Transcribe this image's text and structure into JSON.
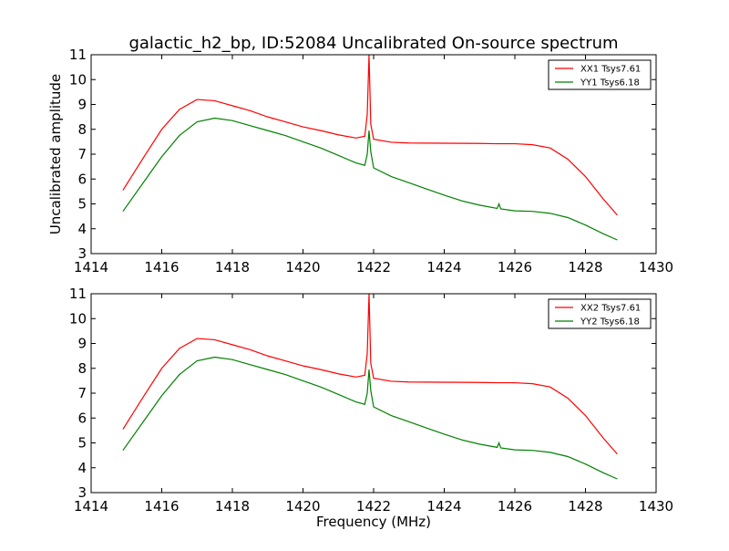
{
  "title": "galactic_h2_bp, ID:52084 Uncalibrated On-source spectrum",
  "ylabel": "Uncalibrated amplitude",
  "xlabel": "Frequency (MHz)",
  "chart_data": [
    {
      "type": "line",
      "xlim": [
        1414,
        1430
      ],
      "ylim": [
        3,
        11
      ],
      "xticks": [
        "1414",
        "1416",
        "1418",
        "1420",
        "1422",
        "1424",
        "1426",
        "1428",
        "1430"
      ],
      "yticks": [
        "3",
        "4",
        "5",
        "6",
        "7",
        "8",
        "9",
        "10",
        "11"
      ],
      "legend_position": "top-right",
      "series": [
        {
          "name": "XX1 Tsys7.61",
          "color": "#ff0000",
          "points": [
            [
              1414.9,
              5.55
            ],
            [
              1415.5,
              6.9
            ],
            [
              1416.0,
              8.0
            ],
            [
              1416.5,
              8.8
            ],
            [
              1417.0,
              9.2
            ],
            [
              1417.5,
              9.15
            ],
            [
              1418.0,
              8.95
            ],
            [
              1418.5,
              8.75
            ],
            [
              1419.0,
              8.5
            ],
            [
              1419.5,
              8.3
            ],
            [
              1420.0,
              8.1
            ],
            [
              1420.5,
              7.95
            ],
            [
              1421.0,
              7.78
            ],
            [
              1421.5,
              7.65
            ],
            [
              1421.75,
              7.72
            ],
            [
              1421.82,
              8.6
            ],
            [
              1421.87,
              11.0
            ],
            [
              1421.92,
              8.2
            ],
            [
              1422.0,
              7.6
            ],
            [
              1422.5,
              7.48
            ],
            [
              1423.0,
              7.45
            ],
            [
              1424.0,
              7.44
            ],
            [
              1425.0,
              7.43
            ],
            [
              1425.5,
              7.42
            ],
            [
              1426.0,
              7.42
            ],
            [
              1426.5,
              7.38
            ],
            [
              1427.0,
              7.25
            ],
            [
              1427.5,
              6.8
            ],
            [
              1428.0,
              6.1
            ],
            [
              1428.5,
              5.2
            ],
            [
              1428.9,
              4.55
            ]
          ]
        },
        {
          "name": "YY1 Tsys6.18",
          "color": "#008000",
          "points": [
            [
              1414.9,
              4.7
            ],
            [
              1415.5,
              5.9
            ],
            [
              1416.0,
              6.9
            ],
            [
              1416.5,
              7.75
            ],
            [
              1417.0,
              8.3
            ],
            [
              1417.5,
              8.45
            ],
            [
              1418.0,
              8.35
            ],
            [
              1418.5,
              8.15
            ],
            [
              1419.0,
              7.95
            ],
            [
              1419.5,
              7.75
            ],
            [
              1420.0,
              7.5
            ],
            [
              1420.5,
              7.25
            ],
            [
              1421.0,
              6.95
            ],
            [
              1421.5,
              6.65
            ],
            [
              1421.75,
              6.55
            ],
            [
              1421.82,
              7.0
            ],
            [
              1421.87,
              7.95
            ],
            [
              1421.92,
              7.1
            ],
            [
              1422.0,
              6.45
            ],
            [
              1422.5,
              6.1
            ],
            [
              1423.0,
              5.85
            ],
            [
              1423.5,
              5.6
            ],
            [
              1424.0,
              5.35
            ],
            [
              1424.5,
              5.12
            ],
            [
              1425.0,
              4.95
            ],
            [
              1425.5,
              4.82
            ],
            [
              1425.55,
              5.0
            ],
            [
              1425.6,
              4.8
            ],
            [
              1426.0,
              4.72
            ],
            [
              1426.5,
              4.7
            ],
            [
              1427.0,
              4.62
            ],
            [
              1427.5,
              4.45
            ],
            [
              1428.0,
              4.15
            ],
            [
              1428.5,
              3.8
            ],
            [
              1428.9,
              3.55
            ]
          ]
        }
      ]
    },
    {
      "type": "line",
      "xlim": [
        1414,
        1430
      ],
      "ylim": [
        3,
        11
      ],
      "xticks": [
        "1414",
        "1416",
        "1418",
        "1420",
        "1422",
        "1424",
        "1426",
        "1428",
        "1430"
      ],
      "yticks": [
        "3",
        "4",
        "5",
        "6",
        "7",
        "8",
        "9",
        "10",
        "11"
      ],
      "legend_position": "top-right",
      "series": [
        {
          "name": "XX2 Tsys7.61",
          "color": "#ff0000",
          "points": [
            [
              1414.9,
              5.55
            ],
            [
              1415.5,
              6.9
            ],
            [
              1416.0,
              8.0
            ],
            [
              1416.5,
              8.8
            ],
            [
              1417.0,
              9.2
            ],
            [
              1417.5,
              9.15
            ],
            [
              1418.0,
              8.95
            ],
            [
              1418.5,
              8.75
            ],
            [
              1419.0,
              8.5
            ],
            [
              1419.5,
              8.3
            ],
            [
              1420.0,
              8.1
            ],
            [
              1420.5,
              7.95
            ],
            [
              1421.0,
              7.78
            ],
            [
              1421.5,
              7.65
            ],
            [
              1421.75,
              7.72
            ],
            [
              1421.82,
              8.6
            ],
            [
              1421.87,
              11.0
            ],
            [
              1421.92,
              8.2
            ],
            [
              1422.0,
              7.6
            ],
            [
              1422.5,
              7.48
            ],
            [
              1423.0,
              7.45
            ],
            [
              1424.0,
              7.44
            ],
            [
              1425.0,
              7.43
            ],
            [
              1425.5,
              7.42
            ],
            [
              1426.0,
              7.42
            ],
            [
              1426.5,
              7.38
            ],
            [
              1427.0,
              7.25
            ],
            [
              1427.5,
              6.8
            ],
            [
              1428.0,
              6.1
            ],
            [
              1428.5,
              5.2
            ],
            [
              1428.9,
              4.55
            ]
          ]
        },
        {
          "name": "YY2 Tsys6.18",
          "color": "#008000",
          "points": [
            [
              1414.9,
              4.7
            ],
            [
              1415.5,
              5.9
            ],
            [
              1416.0,
              6.9
            ],
            [
              1416.5,
              7.75
            ],
            [
              1417.0,
              8.3
            ],
            [
              1417.5,
              8.45
            ],
            [
              1418.0,
              8.35
            ],
            [
              1418.5,
              8.15
            ],
            [
              1419.0,
              7.95
            ],
            [
              1419.5,
              7.75
            ],
            [
              1420.0,
              7.5
            ],
            [
              1420.5,
              7.25
            ],
            [
              1421.0,
              6.95
            ],
            [
              1421.5,
              6.65
            ],
            [
              1421.75,
              6.55
            ],
            [
              1421.82,
              7.0
            ],
            [
              1421.87,
              7.95
            ],
            [
              1421.92,
              7.1
            ],
            [
              1422.0,
              6.45
            ],
            [
              1422.5,
              6.1
            ],
            [
              1423.0,
              5.85
            ],
            [
              1423.5,
              5.6
            ],
            [
              1424.0,
              5.35
            ],
            [
              1424.5,
              5.12
            ],
            [
              1425.0,
              4.95
            ],
            [
              1425.5,
              4.82
            ],
            [
              1425.55,
              5.0
            ],
            [
              1425.6,
              4.8
            ],
            [
              1426.0,
              4.72
            ],
            [
              1426.5,
              4.7
            ],
            [
              1427.0,
              4.62
            ],
            [
              1427.5,
              4.45
            ],
            [
              1428.0,
              4.15
            ],
            [
              1428.5,
              3.8
            ],
            [
              1428.9,
              3.55
            ]
          ]
        }
      ]
    }
  ]
}
